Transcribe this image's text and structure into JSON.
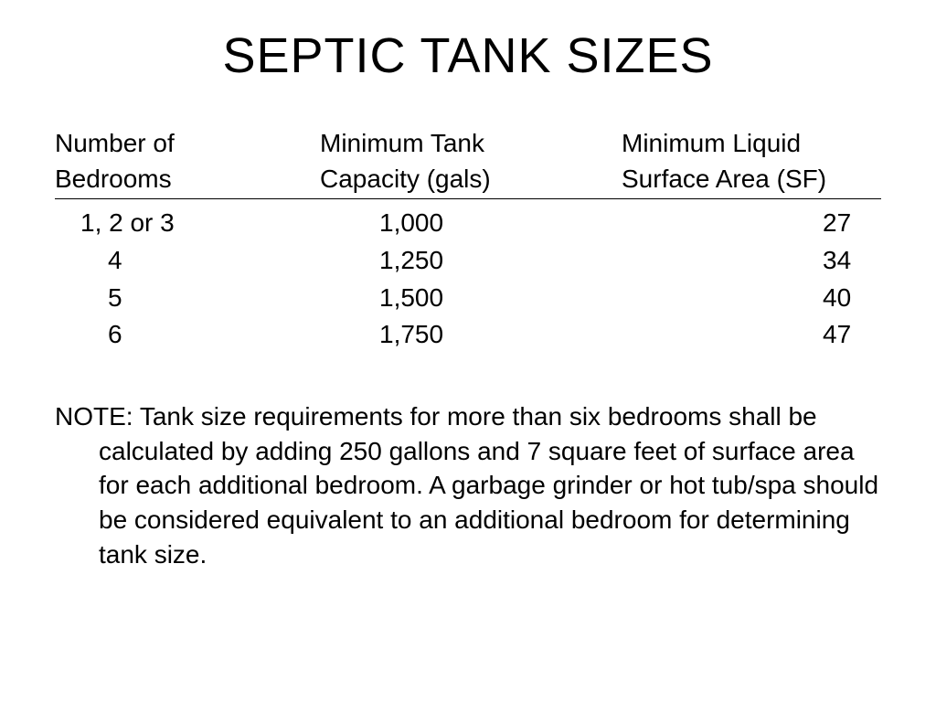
{
  "title": "SEPTIC TANK SIZES",
  "table": {
    "headers": {
      "col1_line1": "Number of",
      "col1_line2": "Bedrooms",
      "col2_line1": "Minimum Tank",
      "col2_line2": "Capacity (gals)",
      "col3_line1": "Minimum Liquid",
      "col3_line2": "Surface Area (SF)"
    },
    "rows": [
      {
        "bedrooms": "1, 2 or 3",
        "capacity": "1,000",
        "surface_area": "27",
        "indent": false
      },
      {
        "bedrooms": "4",
        "capacity": "1,250",
        "surface_area": "34",
        "indent": true
      },
      {
        "bedrooms": "5",
        "capacity": "1,500",
        "surface_area": "40",
        "indent": true
      },
      {
        "bedrooms": "6",
        "capacity": "1,750",
        "surface_area": "47",
        "indent": true
      }
    ]
  },
  "note": {
    "label": "NOTE:  ",
    "text": "Tank size requirements for more than six bedrooms shall be calculated by adding 250 gallons and 7 square feet of surface area for each additional bedroom.  A garbage grinder or hot tub/spa should be considered equivalent to an additional bedroom for determining tank size."
  },
  "styling": {
    "background_color": "#ffffff",
    "text_color": "#000000",
    "font_family": "Arial",
    "title_fontsize": 54,
    "body_fontsize": 28,
    "underline_color": "#000000"
  }
}
